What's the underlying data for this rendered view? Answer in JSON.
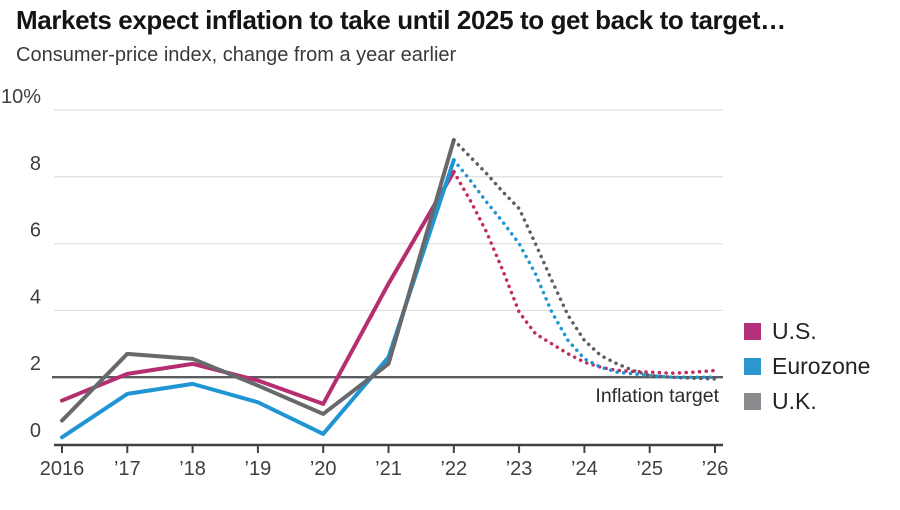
{
  "header": {
    "title": "Markets expect inflation to take until 2025 to get back to target…",
    "subtitle": "Consumer-price index, change from a year earlier"
  },
  "chart_data": {
    "type": "line",
    "title": "Markets expect inflation to take until 2025 to get back to target…",
    "subtitle": "Consumer-price index, change from a year earlier",
    "unit": "%",
    "ylim": [
      0,
      10
    ],
    "xlim": [
      2016,
      2026
    ],
    "grid": "horizontal",
    "legend_position": "right",
    "y_ticks": [
      {
        "value": 10,
        "label": "10%"
      },
      {
        "value": 8,
        "label": "8"
      },
      {
        "value": 6,
        "label": "6"
      },
      {
        "value": 4,
        "label": "4"
      },
      {
        "value": 2,
        "label": "2"
      },
      {
        "value": 0,
        "label": "0"
      }
    ],
    "x_ticks": [
      {
        "year": 2016,
        "label": "2016"
      },
      {
        "year": 2017,
        "label": "’17"
      },
      {
        "year": 2018,
        "label": "’18"
      },
      {
        "year": 2019,
        "label": "’19"
      },
      {
        "year": 2020,
        "label": "’20"
      },
      {
        "year": 2021,
        "label": "’21"
      },
      {
        "year": 2022,
        "label": "’22"
      },
      {
        "year": 2023,
        "label": "’23"
      },
      {
        "year": 2024,
        "label": "’24"
      },
      {
        "year": 2025,
        "label": "’25"
      },
      {
        "year": 2026,
        "label": "’26"
      }
    ],
    "target_line": {
      "value": 2,
      "label": "Inflation target",
      "color": "#5a5b5e"
    },
    "axis_color": "#414141",
    "grid_color": "#e2e2e2",
    "label_color": "#3f3f3f",
    "series": [
      {
        "id": "us",
        "name": "U.S.",
        "color": "#b52e71",
        "forecast_color": "#c32a5e",
        "legend_color": "#b5307a",
        "actual": {
          "x": [
            2016,
            2017,
            2018,
            2019,
            2020,
            2021,
            2022
          ],
          "y": [
            1.3,
            2.1,
            2.4,
            1.9,
            1.2,
            4.8,
            8.15
          ]
        },
        "forecast": {
          "x": [
            2022,
            2022.25,
            2022.5,
            2022.75,
            2023,
            2023.25,
            2023.5,
            2023.75,
            2024,
            2024.25,
            2024.5,
            2024.75,
            2025,
            2025.33,
            2025.67,
            2026
          ],
          "y": [
            8.15,
            7.3,
            6.35,
            5.2,
            3.95,
            3.3,
            3.0,
            2.7,
            2.45,
            2.3,
            2.2,
            2.17,
            2.15,
            2.12,
            2.15,
            2.2
          ]
        }
      },
      {
        "id": "eurozone",
        "name": "Eurozone",
        "color": "#2095d3",
        "forecast_color": "#2095d3",
        "legend_color": "#2b96cf",
        "actual": {
          "x": [
            2016,
            2017,
            2018,
            2019,
            2020,
            2021,
            2022
          ],
          "y": [
            0.2,
            1.5,
            1.8,
            1.25,
            0.3,
            2.6,
            8.5
          ]
        },
        "forecast": {
          "x": [
            2022,
            2022.25,
            2022.5,
            2022.75,
            2023,
            2023.25,
            2023.5,
            2023.75,
            2024,
            2024.25,
            2024.5,
            2024.75,
            2025,
            2025.33,
            2025.67,
            2026
          ],
          "y": [
            8.5,
            7.9,
            7.25,
            6.65,
            6.0,
            5.1,
            3.95,
            3.1,
            2.55,
            2.3,
            2.15,
            2.1,
            2.05,
            2.0,
            2.0,
            2.0
          ]
        }
      },
      {
        "id": "uk",
        "name": "U.K.",
        "color": "#68696c",
        "forecast_color": "#5d5e61",
        "legend_color": "#8a8b8e",
        "actual": {
          "x": [
            2016,
            2017,
            2018,
            2019,
            2020,
            2021,
            2022
          ],
          "y": [
            0.7,
            2.7,
            2.55,
            1.75,
            0.9,
            2.4,
            9.1
          ]
        },
        "forecast": {
          "x": [
            2022,
            2022.25,
            2022.5,
            2022.75,
            2023,
            2023.25,
            2023.5,
            2023.75,
            2024,
            2024.25,
            2024.5,
            2024.75,
            2025,
            2025.33,
            2025.67,
            2026
          ],
          "y": [
            9.1,
            8.6,
            8.1,
            7.55,
            7.05,
            6.0,
            4.9,
            3.85,
            3.1,
            2.65,
            2.4,
            2.2,
            2.05,
            2.0,
            1.97,
            1.95
          ]
        }
      }
    ]
  }
}
